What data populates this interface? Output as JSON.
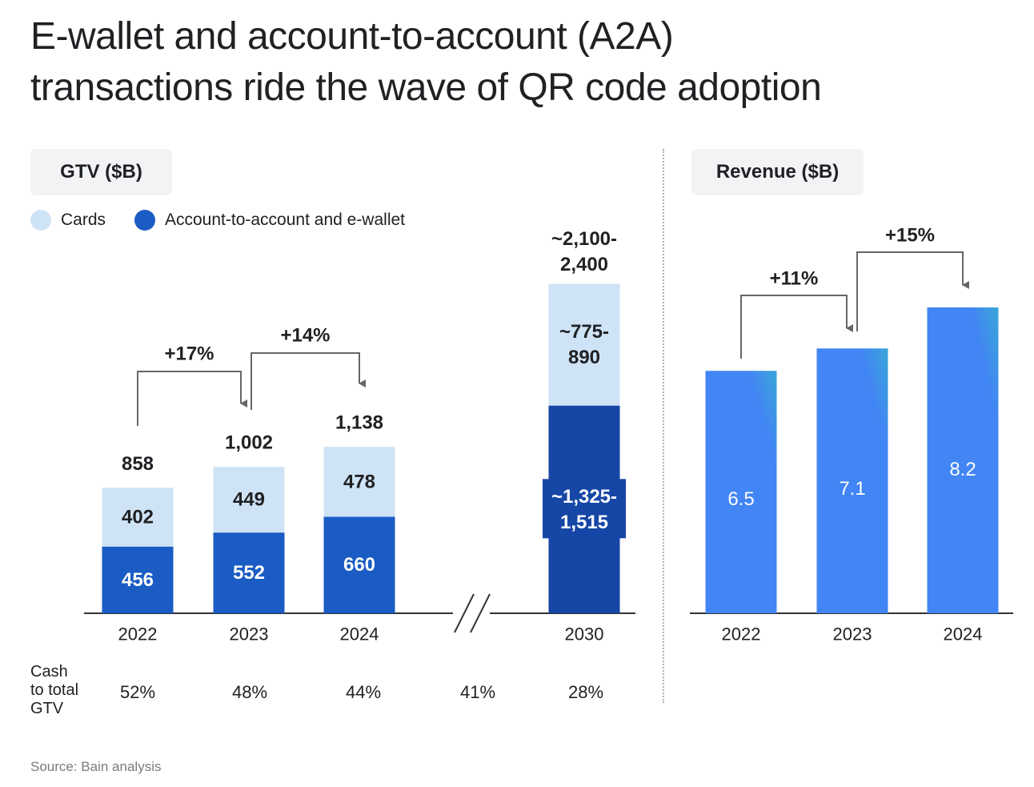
{
  "title": {
    "line1": "E-wallet and account-to-account (A2A)",
    "line2": "transactions ride the wave of QR code adoption"
  },
  "colors": {
    "cards": "#cfe3f6",
    "a2a": "#1a5cc4",
    "a2a_2030": "#1646a6",
    "revenue_top": "#3aa6d8",
    "revenue_bottom": "#4285f4",
    "axis": "#333333",
    "arrow": "#666666"
  },
  "legend": {
    "cards_label": "Cards",
    "a2a_label": "Account-to-account and e-wallet"
  },
  "cash_row": {
    "label_lines": [
      "Cash",
      "to total",
      "GTV"
    ],
    "values": [
      "52%",
      "48%",
      "44%",
      "41%",
      "28%"
    ]
  },
  "source": "Source: Bain analysis",
  "chart_data": [
    {
      "type": "bar",
      "stacked": true,
      "title": "GTV ($B)",
      "categories": [
        "2022",
        "2023",
        "2024",
        "2030"
      ],
      "axis_break_between": [
        "2024",
        "2030"
      ],
      "series": [
        {
          "name": "Account-to-account and e-wallet",
          "values": [
            456,
            552,
            660,
            1420
          ],
          "labels": [
            "456",
            "552",
            "660",
            "~1,325-\n1,515"
          ]
        },
        {
          "name": "Cards",
          "values": [
            402,
            449,
            478,
            833
          ],
          "labels": [
            "402",
            "449",
            "478",
            "~775-\n890"
          ]
        }
      ],
      "totals": [
        "858",
        "1,002",
        "1,138",
        "~2,100-\n2,400"
      ],
      "growth_annotations": [
        {
          "from": "2022",
          "to": "2023",
          "label": "+17%"
        },
        {
          "from": "2023",
          "to": "2024",
          "label": "+14%"
        }
      ],
      "ylim": [
        0,
        2250
      ]
    },
    {
      "type": "bar",
      "title": "Revenue ($B)",
      "categories": [
        "2022",
        "2023",
        "2024"
      ],
      "values": [
        6.5,
        7.1,
        8.2
      ],
      "labels": [
        "6.5",
        "7.1",
        "8.2"
      ],
      "growth_annotations": [
        {
          "from": "2022",
          "to": "2023",
          "label": "+11%"
        },
        {
          "from": "2023",
          "to": "2024",
          "label": "+15%"
        }
      ]
    }
  ]
}
